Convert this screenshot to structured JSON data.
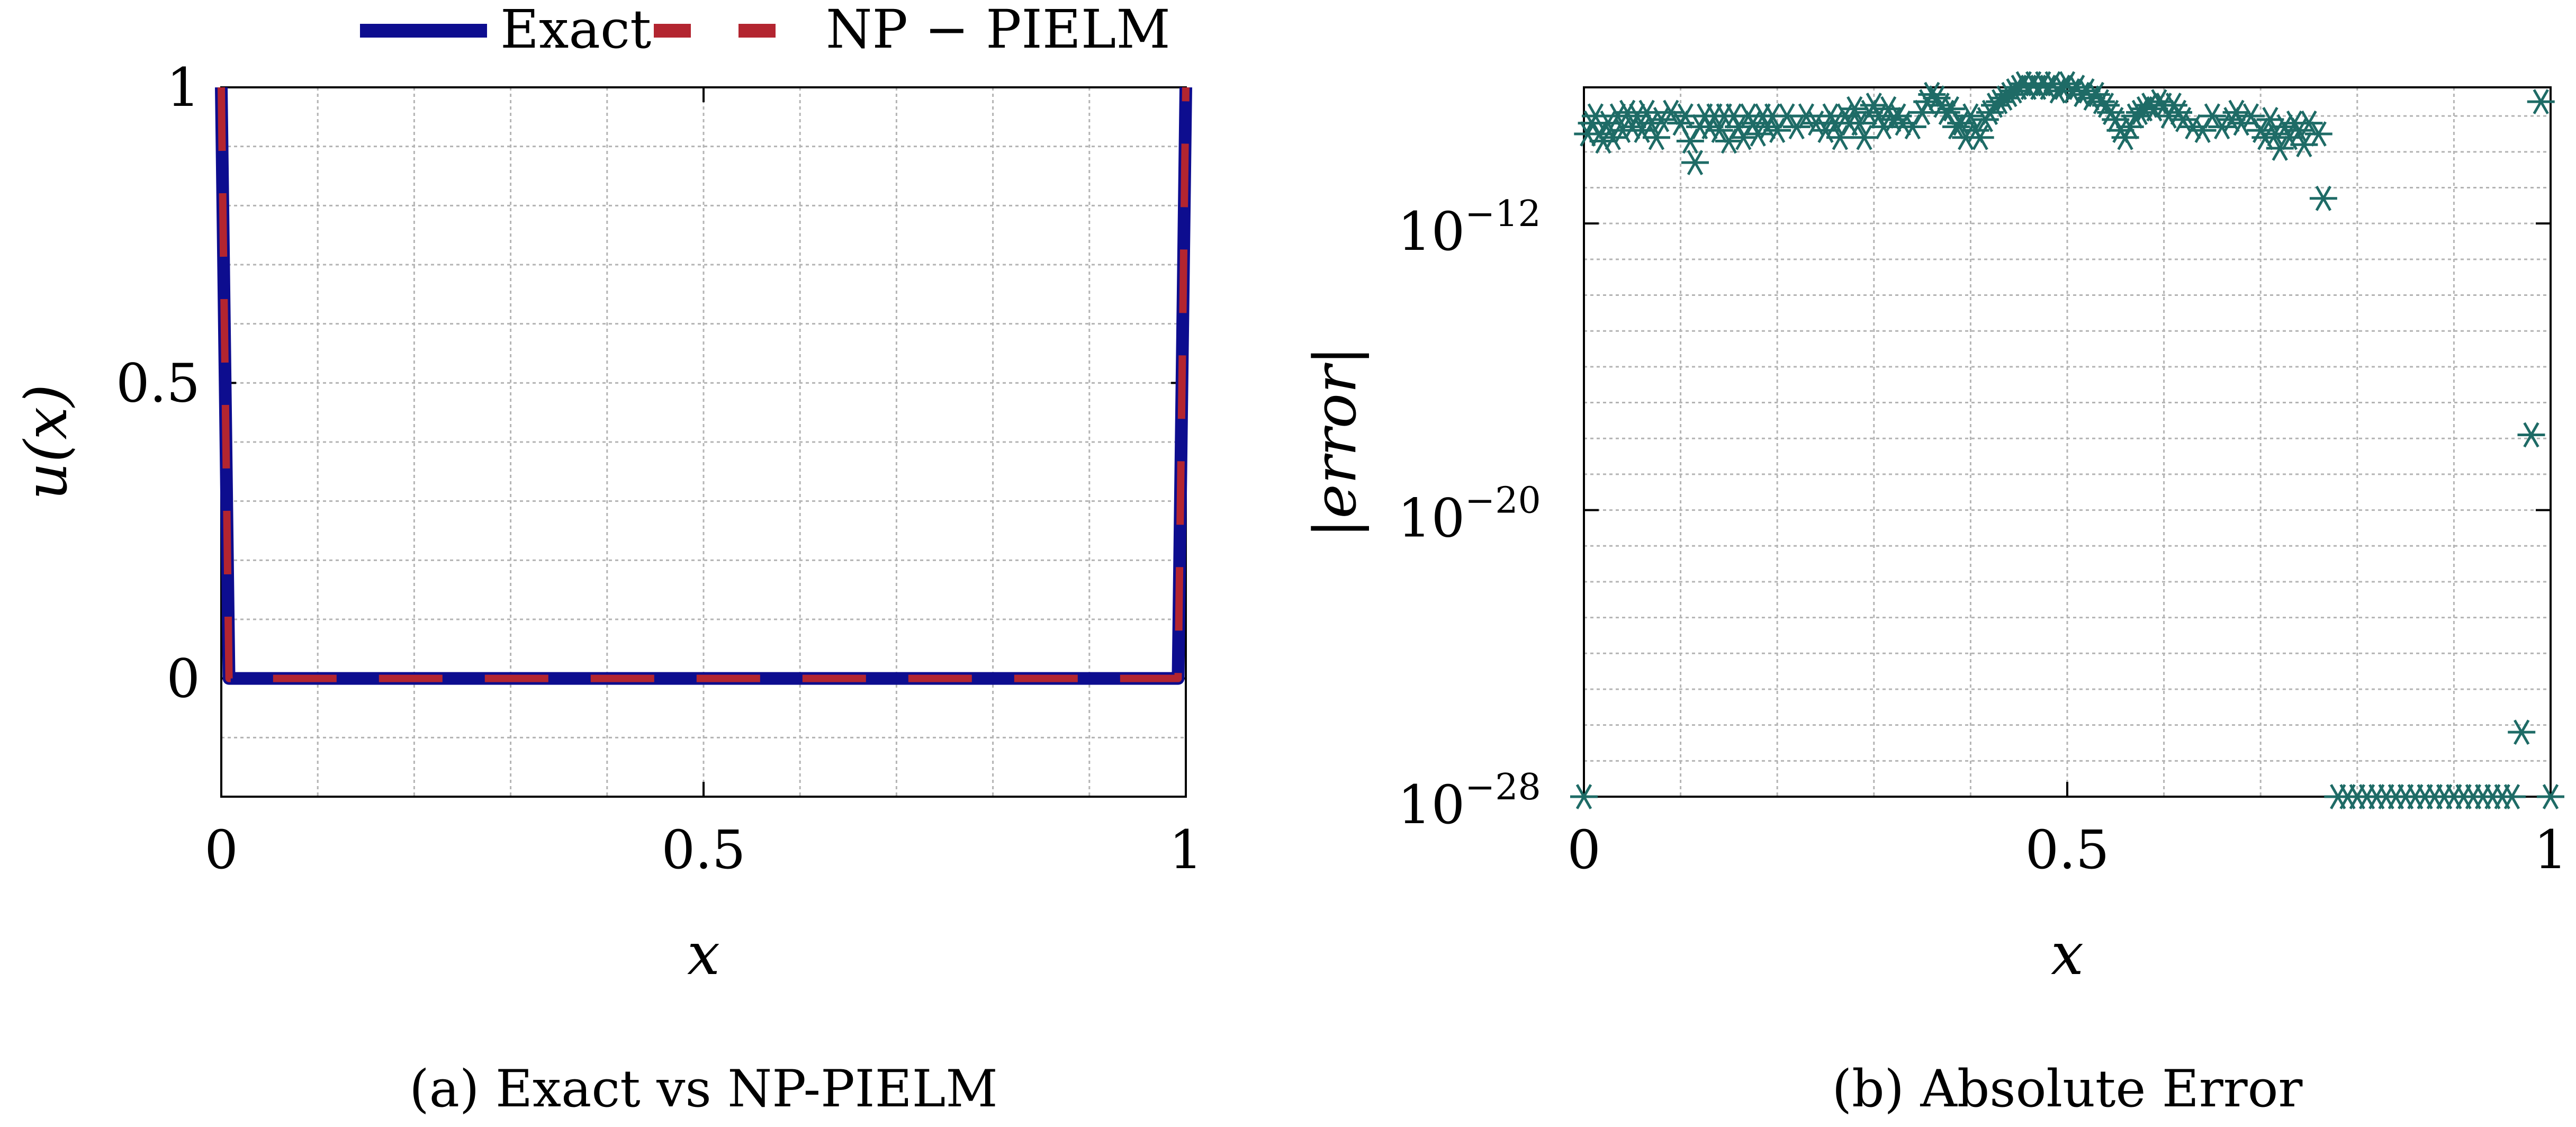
{
  "colors": {
    "exact": "#0d0d8f",
    "pielm": "#b32530",
    "scatter": "#1e6b66",
    "grid": "#b4b4b4",
    "axis": "#000000"
  },
  "chart_data": [
    {
      "id": "a",
      "type": "line",
      "caption": "(a) Exact vs NP-PIELM",
      "xlabel": "x",
      "ylabel": "u(x)",
      "xlim": [
        0,
        1
      ],
      "ylim": [
        -0.2,
        1
      ],
      "xticks": [
        0,
        0.5,
        1
      ],
      "xtick_labels": [
        "0",
        "0.5",
        "1"
      ],
      "yticks": [
        0,
        0.5,
        1
      ],
      "ytick_labels": [
        "0",
        "0.5",
        "1"
      ],
      "legend": [
        "Exact",
        "NP − PIELM"
      ],
      "legend_position": "top-center",
      "series": [
        {
          "name": "Exact",
          "style": "solid",
          "x": [
            0,
            0.008,
            0.992,
            1
          ],
          "y": [
            1,
            0,
            0,
            1
          ]
        },
        {
          "name": "NP − PIELM",
          "style": "dashed",
          "x": [
            0,
            0.008,
            0.992,
            1
          ],
          "y": [
            1,
            0,
            0,
            1
          ]
        }
      ]
    },
    {
      "id": "b",
      "type": "scatter",
      "caption": "(b) Absolute Error",
      "xlabel": "x",
      "ylabel": "|error|",
      "yscale": "log",
      "xlim": [
        0,
        1
      ],
      "ylim_exp": [
        -28,
        -8.2
      ],
      "xticks": [
        0,
        0.5,
        1
      ],
      "xtick_labels": [
        "0",
        "0.5",
        "1"
      ],
      "yticks_exp": [
        -12,
        -20,
        -28
      ],
      "ytick_bases": [
        "10",
        "10",
        "10"
      ],
      "ytick_exponents": [
        "−12",
        "−20",
        "−28"
      ],
      "marker": "asterisk",
      "series": [
        {
          "name": "|error|",
          "points_log10": [
            [
              0.0,
              -28.0
            ],
            [
              0.004,
              -9.5
            ],
            [
              0.008,
              -9.2
            ],
            [
              0.012,
              -9.0
            ],
            [
              0.016,
              -9.5
            ],
            [
              0.02,
              -9.7
            ],
            [
              0.025,
              -9.2
            ],
            [
              0.03,
              -9.6
            ],
            [
              0.035,
              -9.0
            ],
            [
              0.04,
              -9.4
            ],
            [
              0.045,
              -8.9
            ],
            [
              0.05,
              -9.3
            ],
            [
              0.055,
              -9.0
            ],
            [
              0.06,
              -9.4
            ],
            [
              0.065,
              -8.9
            ],
            [
              0.07,
              -9.2
            ],
            [
              0.075,
              -9.6
            ],
            [
              0.08,
              -9.1
            ],
            [
              0.09,
              -8.9
            ],
            [
              0.1,
              -9.2
            ],
            [
              0.105,
              -9.0
            ],
            [
              0.11,
              -9.7
            ],
            [
              0.115,
              -10.3
            ],
            [
              0.12,
              -9.3
            ],
            [
              0.125,
              -9.0
            ],
            [
              0.13,
              -9.3
            ],
            [
              0.135,
              -9.0
            ],
            [
              0.14,
              -9.4
            ],
            [
              0.145,
              -9.0
            ],
            [
              0.15,
              -9.7
            ],
            [
              0.155,
              -9.0
            ],
            [
              0.16,
              -9.3
            ],
            [
              0.165,
              -9.6
            ],
            [
              0.17,
              -9.0
            ],
            [
              0.175,
              -9.2
            ],
            [
              0.18,
              -9.5
            ],
            [
              0.185,
              -9.0
            ],
            [
              0.19,
              -9.3
            ],
            [
              0.195,
              -9.0
            ],
            [
              0.2,
              -9.4
            ],
            [
              0.21,
              -9.0
            ],
            [
              0.22,
              -9.3
            ],
            [
              0.23,
              -9.0
            ],
            [
              0.24,
              -9.2
            ],
            [
              0.25,
              -9.4
            ],
            [
              0.255,
              -9.0
            ],
            [
              0.26,
              -9.2
            ],
            [
              0.265,
              -9.6
            ],
            [
              0.27,
              -9.0
            ],
            [
              0.275,
              -9.2
            ],
            [
              0.28,
              -8.8
            ],
            [
              0.285,
              -9.2
            ],
            [
              0.29,
              -9.6
            ],
            [
              0.295,
              -8.9
            ],
            [
              0.3,
              -8.7
            ],
            [
              0.305,
              -9.0
            ],
            [
              0.31,
              -9.3
            ],
            [
              0.315,
              -8.8
            ],
            [
              0.32,
              -9.1
            ],
            [
              0.325,
              -9.0
            ],
            [
              0.33,
              -9.2
            ],
            [
              0.34,
              -9.3
            ],
            [
              0.35,
              -8.9
            ],
            [
              0.355,
              -8.6
            ],
            [
              0.36,
              -8.4
            ],
            [
              0.365,
              -8.5
            ],
            [
              0.37,
              -8.7
            ],
            [
              0.375,
              -8.9
            ],
            [
              0.38,
              -8.8
            ],
            [
              0.385,
              -9.3
            ],
            [
              0.39,
              -9.2
            ],
            [
              0.395,
              -9.6
            ],
            [
              0.4,
              -9.0
            ],
            [
              0.405,
              -9.4
            ],
            [
              0.41,
              -9.6
            ],
            [
              0.415,
              -9.1
            ],
            [
              0.42,
              -8.9
            ],
            [
              0.425,
              -8.7
            ],
            [
              0.43,
              -8.6
            ],
            [
              0.435,
              -8.5
            ],
            [
              0.44,
              -8.4
            ],
            [
              0.445,
              -8.3
            ],
            [
              0.45,
              -8.2
            ],
            [
              0.455,
              -8.1
            ],
            [
              0.46,
              -8.2
            ],
            [
              0.465,
              -8.1
            ],
            [
              0.47,
              -8.2
            ],
            [
              0.475,
              -8.1
            ],
            [
              0.48,
              -8.2
            ],
            [
              0.485,
              -8.1
            ],
            [
              0.49,
              -8.3
            ],
            [
              0.495,
              -8.2
            ],
            [
              0.5,
              -8.1
            ],
            [
              0.505,
              -8.3
            ],
            [
              0.51,
              -8.2
            ],
            [
              0.515,
              -8.4
            ],
            [
              0.52,
              -8.3
            ],
            [
              0.525,
              -8.5
            ],
            [
              0.53,
              -8.4
            ],
            [
              0.535,
              -8.6
            ],
            [
              0.54,
              -8.7
            ],
            [
              0.545,
              -8.9
            ],
            [
              0.55,
              -9.1
            ],
            [
              0.555,
              -9.4
            ],
            [
              0.56,
              -9.6
            ],
            [
              0.565,
              -9.3
            ],
            [
              0.57,
              -9.0
            ],
            [
              0.575,
              -8.9
            ],
            [
              0.58,
              -8.8
            ],
            [
              0.585,
              -8.7
            ],
            [
              0.59,
              -8.8
            ],
            [
              0.595,
              -8.6
            ],
            [
              0.6,
              -8.7
            ],
            [
              0.605,
              -9.0
            ],
            [
              0.61,
              -8.7
            ],
            [
              0.615,
              -8.9
            ],
            [
              0.62,
              -9.1
            ],
            [
              0.63,
              -9.3
            ],
            [
              0.64,
              -9.4
            ],
            [
              0.65,
              -9.0
            ],
            [
              0.66,
              -9.3
            ],
            [
              0.67,
              -9.1
            ],
            [
              0.675,
              -8.9
            ],
            [
              0.68,
              -9.2
            ],
            [
              0.69,
              -9.0
            ],
            [
              0.7,
              -9.4
            ],
            [
              0.705,
              -9.6
            ],
            [
              0.71,
              -9.1
            ],
            [
              0.715,
              -9.5
            ],
            [
              0.72,
              -9.9
            ],
            [
              0.725,
              -9.3
            ],
            [
              0.73,
              -9.6
            ],
            [
              0.735,
              -9.2
            ],
            [
              0.74,
              -9.4
            ],
            [
              0.745,
              -9.8
            ],
            [
              0.75,
              -9.2
            ],
            [
              0.76,
              -9.5
            ],
            [
              0.765,
              -11.3
            ],
            [
              0.78,
              -28.0
            ],
            [
              0.79,
              -28.0
            ],
            [
              0.8,
              -28.0
            ],
            [
              0.81,
              -28.0
            ],
            [
              0.82,
              -28.0
            ],
            [
              0.83,
              -28.0
            ],
            [
              0.84,
              -28.0
            ],
            [
              0.85,
              -28.0
            ],
            [
              0.86,
              -28.0
            ],
            [
              0.87,
              -28.0
            ],
            [
              0.88,
              -28.0
            ],
            [
              0.89,
              -28.0
            ],
            [
              0.9,
              -28.0
            ],
            [
              0.91,
              -28.0
            ],
            [
              0.92,
              -28.0
            ],
            [
              0.93,
              -28.0
            ],
            [
              0.94,
              -28.0
            ],
            [
              0.95,
              -28.0
            ],
            [
              0.96,
              -28.0
            ],
            [
              0.97,
              -26.2
            ],
            [
              0.98,
              -17.9
            ],
            [
              0.99,
              -8.6
            ],
            [
              1.0,
              -28.0
            ]
          ]
        }
      ]
    }
  ]
}
